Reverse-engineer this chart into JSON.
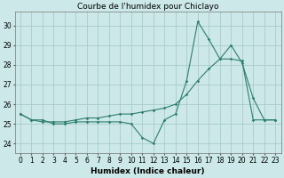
{
  "x": [
    0,
    1,
    2,
    3,
    4,
    5,
    6,
    7,
    8,
    9,
    10,
    11,
    12,
    13,
    14,
    15,
    16,
    17,
    18,
    19,
    20,
    21,
    22,
    23
  ],
  "series1": [
    25.5,
    25.2,
    25.2,
    25.0,
    25.0,
    25.1,
    25.1,
    25.1,
    25.1,
    25.1,
    25.0,
    24.3,
    24.0,
    25.2,
    25.5,
    27.2,
    30.2,
    29.3,
    28.3,
    29.0,
    28.1,
    26.3,
    25.2,
    25.2
  ],
  "series2": [
    25.5,
    25.2,
    25.1,
    25.1,
    25.1,
    25.2,
    25.3,
    25.3,
    25.4,
    25.5,
    25.5,
    25.6,
    25.7,
    25.8,
    26.0,
    26.5,
    27.2,
    27.8,
    28.3,
    28.3,
    28.2,
    25.2,
    25.2,
    25.2
  ],
  "title": "Courbe de l'humidex pour Chiclayo",
  "xlabel": "Humidex (Indice chaleur)",
  "ylim": [
    23.5,
    30.7
  ],
  "xlim": [
    -0.5,
    23.5
  ],
  "yticks": [
    24,
    25,
    26,
    27,
    28,
    29,
    30
  ],
  "xticks": [
    0,
    1,
    2,
    3,
    4,
    5,
    6,
    7,
    8,
    9,
    10,
    11,
    12,
    13,
    14,
    15,
    16,
    17,
    18,
    19,
    20,
    21,
    22,
    23
  ],
  "line_color": "#2e7d6e",
  "bg_color": "#cce8e8",
  "grid_color": "#aacccc",
  "title_fontsize": 6.5,
  "label_fontsize": 6.5,
  "tick_fontsize": 5.5
}
